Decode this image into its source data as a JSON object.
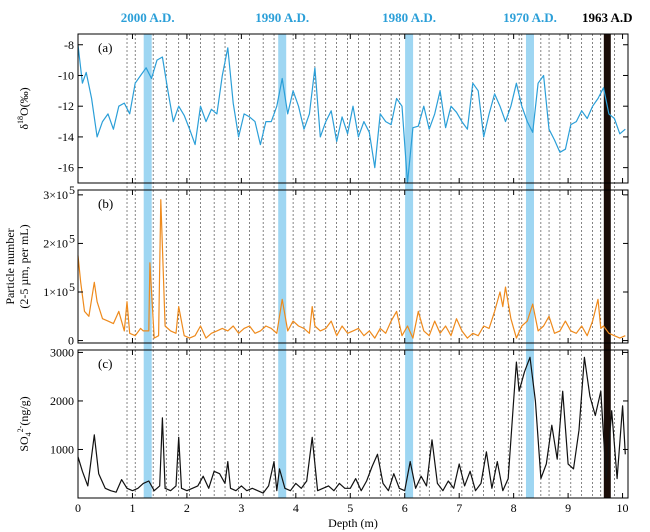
{
  "chart_data": {
    "type": "line",
    "xlabel": "Depth (m)",
    "x_ticks": [
      0,
      1,
      2,
      3,
      4,
      5,
      6,
      7,
      8,
      9,
      10
    ],
    "xlim": [
      0,
      10.1
    ],
    "year_markers": [
      {
        "label": "2000 A.D.",
        "depth": 1.28,
        "color": "#2b9fd8"
      },
      {
        "label": "1990 A.D.",
        "depth": 3.75,
        "color": "#2b9fd8"
      },
      {
        "label": "1980 A.D.",
        "depth": 6.08,
        "color": "#2b9fd8"
      },
      {
        "label": "1970 A.D.",
        "depth": 8.3,
        "color": "#2b9fd8"
      },
      {
        "label": "1963 A.D",
        "depth": 9.72,
        "color": "#000000"
      }
    ],
    "dashed_lines": [
      0.9,
      1.05,
      1.38,
      1.62,
      1.85,
      2.05,
      2.25,
      2.5,
      2.7,
      2.95,
      3.15,
      3.4,
      3.6,
      3.95,
      4.15,
      4.35,
      4.55,
      4.75,
      4.95,
      5.15,
      5.35,
      5.55,
      5.75,
      5.9,
      6.28,
      6.45,
      6.65,
      6.85,
      7.05,
      7.25,
      7.45,
      7.65,
      7.9,
      8.1,
      8.15,
      8.5,
      8.65,
      8.85,
      9.05,
      9.25,
      9.45,
      9.6,
      9.85
    ],
    "panels": [
      {
        "label": "(a)",
        "ylabel": "δ18O(‰)",
        "y_ticks": [
          -8,
          -10,
          -12,
          -14,
          -16
        ],
        "ylim": [
          -17,
          -7.3
        ],
        "color": "#2b9fd8",
        "x": [
          0,
          0.08,
          0.15,
          0.25,
          0.35,
          0.45,
          0.55,
          0.65,
          0.75,
          0.85,
          0.95,
          1.05,
          1.15,
          1.25,
          1.35,
          1.45,
          1.55,
          1.65,
          1.75,
          1.85,
          1.95,
          2.05,
          2.15,
          2.25,
          2.35,
          2.45,
          2.55,
          2.65,
          2.75,
          2.85,
          2.95,
          3.05,
          3.15,
          3.25,
          3.35,
          3.45,
          3.55,
          3.65,
          3.75,
          3.85,
          3.95,
          4.05,
          4.15,
          4.25,
          4.35,
          4.45,
          4.55,
          4.65,
          4.75,
          4.85,
          4.95,
          5.05,
          5.15,
          5.25,
          5.35,
          5.45,
          5.55,
          5.65,
          5.75,
          5.85,
          5.95,
          6.05,
          6.15,
          6.25,
          6.35,
          6.45,
          6.55,
          6.65,
          6.75,
          6.85,
          6.95,
          7.05,
          7.15,
          7.25,
          7.35,
          7.45,
          7.55,
          7.65,
          7.75,
          7.85,
          7.95,
          8.05,
          8.15,
          8.25,
          8.35,
          8.45,
          8.55,
          8.65,
          8.75,
          8.85,
          8.95,
          9.05,
          9.15,
          9.25,
          9.35,
          9.45,
          9.55,
          9.65,
          9.75,
          9.85,
          9.95,
          10.05
        ],
        "values": [
          -8,
          -10.5,
          -9.8,
          -11.5,
          -14,
          -13,
          -12.5,
          -13.5,
          -12,
          -11.8,
          -12.5,
          -10.5,
          -10,
          -9.5,
          -10.2,
          -9,
          -8.8,
          -11,
          -13,
          -12,
          -12.6,
          -13.5,
          -14.5,
          -12,
          -13,
          -12.2,
          -12.5,
          -10,
          -8.2,
          -11.8,
          -14,
          -12.5,
          -12.7,
          -13,
          -14.5,
          -13,
          -13,
          -12,
          -10.2,
          -12.5,
          -11,
          -12,
          -13.5,
          -12.5,
          -9.5,
          -14,
          -13,
          -12.3,
          -14.3,
          -12.7,
          -13.8,
          -12,
          -14,
          -13,
          -13.7,
          -16,
          -12.5,
          -13,
          -13.2,
          -11.5,
          -12,
          -17,
          -13.4,
          -13.3,
          -12,
          -13.5,
          -12.5,
          -11,
          -13.4,
          -12,
          -12.4,
          -13,
          -13.5,
          -10.5,
          -11,
          -14,
          -12.5,
          -11.2,
          -12,
          -13,
          -12,
          -10.5,
          -12,
          -13,
          -13.7,
          -10.5,
          -10,
          -13.5,
          -14.2,
          -15,
          -14.8,
          -13.2,
          -13,
          -12.3,
          -12.8,
          -12,
          -11.5,
          -10.8,
          -12.5,
          -12.8,
          -13.8,
          -13.5
        ]
      },
      {
        "label": "(b)",
        "ylabel_lines": [
          "Particle number",
          "(2-5 µm, per mL)"
        ],
        "y_ticks": [
          0,
          100000,
          200000,
          300000
        ],
        "y_tick_labels": [
          "0",
          "1×10",
          "2×10",
          "3×10"
        ],
        "y_tick_exp": "5",
        "ylim": [
          -5000,
          310000
        ],
        "color": "#ee8a1c",
        "x": [
          0,
          0.05,
          0.12,
          0.2,
          0.3,
          0.35,
          0.45,
          0.55,
          0.65,
          0.75,
          0.85,
          0.9,
          0.95,
          1.05,
          1.15,
          1.2,
          1.3,
          1.32,
          1.4,
          1.48,
          1.52,
          1.6,
          1.7,
          1.8,
          1.85,
          1.95,
          2.05,
          2.15,
          2.25,
          2.35,
          2.45,
          2.55,
          2.65,
          2.75,
          2.85,
          2.95,
          3.05,
          3.15,
          3.25,
          3.35,
          3.45,
          3.55,
          3.65,
          3.75,
          3.85,
          3.95,
          4.05,
          4.15,
          4.25,
          4.3,
          4.35,
          4.45,
          4.55,
          4.65,
          4.75,
          4.85,
          4.95,
          5.05,
          5.15,
          5.25,
          5.35,
          5.45,
          5.55,
          5.65,
          5.75,
          5.85,
          5.95,
          6.05,
          6.15,
          6.25,
          6.35,
          6.45,
          6.55,
          6.65,
          6.75,
          6.85,
          6.95,
          7.05,
          7.15,
          7.25,
          7.35,
          7.45,
          7.55,
          7.65,
          7.75,
          7.8,
          7.85,
          7.95,
          8.05,
          8.15,
          8.25,
          8.35,
          8.45,
          8.55,
          8.65,
          8.75,
          8.85,
          8.95,
          9.05,
          9.15,
          9.25,
          9.35,
          9.45,
          9.55,
          9.6,
          9.65,
          9.75,
          9.85,
          9.95,
          10.05
        ],
        "values": [
          175000,
          120000,
          60000,
          50000,
          120000,
          80000,
          45000,
          40000,
          35000,
          60000,
          20000,
          80000,
          15000,
          10000,
          25000,
          20000,
          20000,
          160000,
          5000,
          10000,
          290000,
          30000,
          20000,
          15000,
          70000,
          10000,
          5000,
          10000,
          30000,
          5000,
          15000,
          20000,
          25000,
          20000,
          30000,
          15000,
          25000,
          30000,
          15000,
          20000,
          30000,
          25000,
          15000,
          85000,
          20000,
          40000,
          30000,
          25000,
          15000,
          70000,
          30000,
          20000,
          25000,
          40000,
          10000,
          30000,
          15000,
          20000,
          25000,
          10000,
          20000,
          5000,
          25000,
          15000,
          40000,
          60000,
          10000,
          30000,
          5000,
          60000,
          20000,
          10000,
          40000,
          15000,
          30000,
          10000,
          45000,
          20000,
          5000,
          15000,
          10000,
          30000,
          25000,
          60000,
          100000,
          70000,
          110000,
          45000,
          5000,
          30000,
          40000,
          75000,
          20000,
          30000,
          50000,
          15000,
          20000,
          40000,
          20000,
          15000,
          30000,
          10000,
          40000,
          85000,
          25000,
          30000,
          15000,
          10000,
          5000,
          10000
        ]
      },
      {
        "label": "(c)",
        "ylabel": "SO4 2-(ng/g)",
        "y_ticks": [
          1000,
          2000,
          3000
        ],
        "ylim": [
          0,
          3050
        ],
        "color": "#111111",
        "x": [
          0,
          0.08,
          0.18,
          0.3,
          0.38,
          0.5,
          0.6,
          0.7,
          0.8,
          0.9,
          1.0,
          1.1,
          1.2,
          1.3,
          1.4,
          1.5,
          1.55,
          1.6,
          1.7,
          1.8,
          1.85,
          1.9,
          2.0,
          2.1,
          2.2,
          2.3,
          2.4,
          2.5,
          2.6,
          2.7,
          2.75,
          2.8,
          2.9,
          3.0,
          3.1,
          3.2,
          3.3,
          3.4,
          3.5,
          3.6,
          3.65,
          3.7,
          3.8,
          3.9,
          4.0,
          4.1,
          4.2,
          4.3,
          4.4,
          4.5,
          4.6,
          4.7,
          4.8,
          4.9,
          5.0,
          5.1,
          5.2,
          5.3,
          5.4,
          5.5,
          5.6,
          5.7,
          5.8,
          5.9,
          6.0,
          6.1,
          6.2,
          6.3,
          6.4,
          6.5,
          6.6,
          6.7,
          6.8,
          6.9,
          7.0,
          7.1,
          7.2,
          7.3,
          7.4,
          7.5,
          7.6,
          7.7,
          7.8,
          7.9,
          8.0,
          8.05,
          8.1,
          8.2,
          8.3,
          8.4,
          8.5,
          8.6,
          8.7,
          8.8,
          8.9,
          9.0,
          9.1,
          9.2,
          9.3,
          9.4,
          9.5,
          9.6,
          9.7,
          9.8,
          9.9,
          10.0,
          10.05
        ],
        "values": [
          850,
          550,
          250,
          1300,
          500,
          200,
          150,
          120,
          380,
          200,
          150,
          200,
          300,
          350,
          150,
          250,
          1650,
          200,
          150,
          250,
          1250,
          200,
          150,
          200,
          250,
          450,
          200,
          550,
          500,
          300,
          750,
          200,
          150,
          250,
          150,
          200,
          150,
          100,
          250,
          750,
          150,
          600,
          200,
          150,
          300,
          200,
          350,
          1250,
          150,
          200,
          250,
          150,
          300,
          200,
          200,
          400,
          150,
          350,
          650,
          900,
          300,
          150,
          500,
          200,
          150,
          750,
          200,
          450,
          250,
          1200,
          300,
          150,
          350,
          200,
          700,
          250,
          550,
          150,
          300,
          950,
          200,
          750,
          150,
          400,
          2000,
          2800,
          2200,
          2600,
          2900,
          2000,
          400,
          700,
          1500,
          800,
          2200,
          700,
          600,
          1400,
          2900,
          2100,
          1700,
          2200,
          400,
          1800,
          400,
          1900,
          900
        ]
      }
    ]
  }
}
